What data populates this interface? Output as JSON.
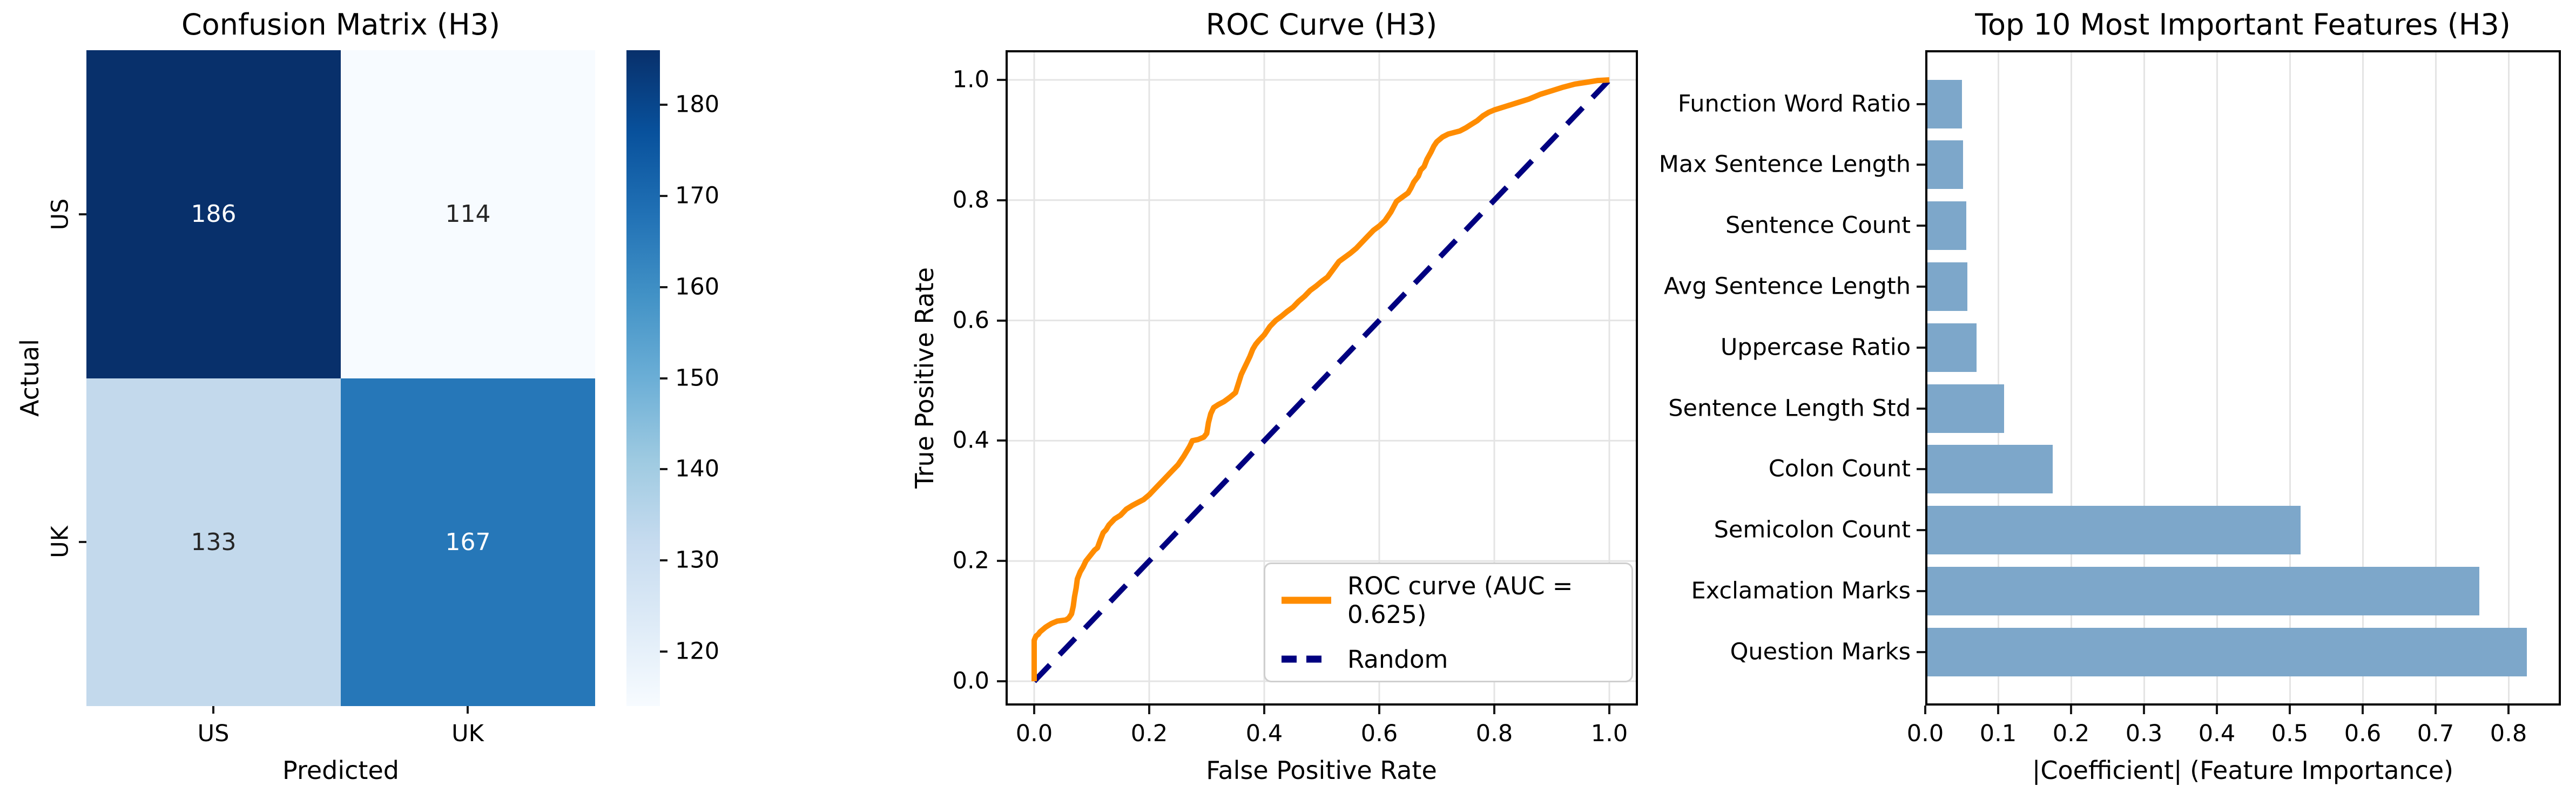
{
  "accent_colors": {
    "roc_orange": "#ff8c00",
    "random_navy": "#000080",
    "bar_blue": "#7da7ca",
    "grid_gray": "#e4e4e4",
    "annot_dark": "#262626",
    "annot_light": "#ffffff"
  },
  "chart_data": [
    {
      "type": "heatmap",
      "title": "Confusion Matrix (H3)",
      "xlabel": "Predicted",
      "ylabel": "Actual",
      "x_categories": [
        "US",
        "UK"
      ],
      "y_categories": [
        "US",
        "UK"
      ],
      "values": [
        [
          186,
          114
        ],
        [
          133,
          167
        ]
      ],
      "vmin": 114,
      "vmax": 186,
      "colormap": "Blues",
      "colorbar_ticks": [
        180,
        170,
        160,
        150,
        140,
        130,
        120
      ],
      "cell_colors": [
        [
          "#08306b",
          "#f7fbff"
        ],
        [
          "#c3d9ec",
          "#2677b8"
        ]
      ],
      "cell_text_colors": [
        [
          "#ffffff",
          "#262626"
        ],
        [
          "#262626",
          "#ffffff"
        ]
      ],
      "grid": false
    },
    {
      "type": "line",
      "title": "ROC Curve (H3)",
      "xlabel": "False Positive Rate",
      "ylabel": "True Positive Rate",
      "xlim": [
        0,
        1
      ],
      "ylim": [
        0,
        1
      ],
      "xticks": [
        0.0,
        0.2,
        0.4,
        0.6,
        0.8,
        1.0
      ],
      "yticks": [
        0.0,
        0.2,
        0.4,
        0.6,
        0.8,
        1.0
      ],
      "grid": true,
      "legend_position": "lower right",
      "series": [
        {
          "name": "ROC curve (AUC = 0.625)",
          "color": "#ff8c00",
          "style": "solid",
          "points": [
            [
              0,
              0
            ],
            [
              0,
              0.068
            ],
            [
              0.003,
              0.075
            ],
            [
              0.007,
              0.078
            ],
            [
              0.01,
              0.082
            ],
            [
              0.015,
              0.086
            ],
            [
              0.02,
              0.09
            ],
            [
              0.025,
              0.093
            ],
            [
              0.03,
              0.096
            ],
            [
              0.035,
              0.098
            ],
            [
              0.04,
              0.1
            ],
            [
              0.055,
              0.102
            ],
            [
              0.06,
              0.105
            ],
            [
              0.065,
              0.112
            ],
            [
              0.068,
              0.125
            ],
            [
              0.07,
              0.14
            ],
            [
              0.073,
              0.155
            ],
            [
              0.075,
              0.17
            ],
            [
              0.08,
              0.182
            ],
            [
              0.085,
              0.19
            ],
            [
              0.09,
              0.2
            ],
            [
              0.1,
              0.212
            ],
            [
              0.105,
              0.218
            ],
            [
              0.11,
              0.222
            ],
            [
              0.115,
              0.235
            ],
            [
              0.12,
              0.247
            ],
            [
              0.125,
              0.252
            ],
            [
              0.13,
              0.26
            ],
            [
              0.14,
              0.27
            ],
            [
              0.15,
              0.276
            ],
            [
              0.16,
              0.286
            ],
            [
              0.17,
              0.292
            ],
            [
              0.18,
              0.297
            ],
            [
              0.19,
              0.302
            ],
            [
              0.2,
              0.31
            ],
            [
              0.21,
              0.32
            ],
            [
              0.22,
              0.33
            ],
            [
              0.23,
              0.34
            ],
            [
              0.24,
              0.35
            ],
            [
              0.25,
              0.36
            ],
            [
              0.26,
              0.374
            ],
            [
              0.27,
              0.39
            ],
            [
              0.275,
              0.4
            ],
            [
              0.285,
              0.402
            ],
            [
              0.295,
              0.406
            ],
            [
              0.3,
              0.412
            ],
            [
              0.303,
              0.43
            ],
            [
              0.307,
              0.445
            ],
            [
              0.312,
              0.455
            ],
            [
              0.32,
              0.46
            ],
            [
              0.33,
              0.465
            ],
            [
              0.34,
              0.472
            ],
            [
              0.35,
              0.48
            ],
            [
              0.355,
              0.495
            ],
            [
              0.36,
              0.51
            ],
            [
              0.365,
              0.52
            ],
            [
              0.37,
              0.53
            ],
            [
              0.375,
              0.54
            ],
            [
              0.38,
              0.552
            ],
            [
              0.385,
              0.56
            ],
            [
              0.39,
              0.566
            ],
            [
              0.4,
              0.576
            ],
            [
              0.41,
              0.59
            ],
            [
              0.42,
              0.6
            ],
            [
              0.43,
              0.607
            ],
            [
              0.44,
              0.615
            ],
            [
              0.45,
              0.622
            ],
            [
              0.46,
              0.632
            ],
            [
              0.47,
              0.64
            ],
            [
              0.48,
              0.65
            ],
            [
              0.49,
              0.657
            ],
            [
              0.5,
              0.665
            ],
            [
              0.51,
              0.672
            ],
            [
              0.52,
              0.685
            ],
            [
              0.53,
              0.698
            ],
            [
              0.54,
              0.705
            ],
            [
              0.55,
              0.712
            ],
            [
              0.56,
              0.72
            ],
            [
              0.57,
              0.73
            ],
            [
              0.58,
              0.74
            ],
            [
              0.59,
              0.75
            ],
            [
              0.6,
              0.757
            ],
            [
              0.61,
              0.766
            ],
            [
              0.62,
              0.78
            ],
            [
              0.63,
              0.798
            ],
            [
              0.64,
              0.805
            ],
            [
              0.65,
              0.812
            ],
            [
              0.655,
              0.82
            ],
            [
              0.66,
              0.83
            ],
            [
              0.668,
              0.84
            ],
            [
              0.672,
              0.85
            ],
            [
              0.678,
              0.856
            ],
            [
              0.683,
              0.868
            ],
            [
              0.69,
              0.88
            ],
            [
              0.695,
              0.89
            ],
            [
              0.7,
              0.897
            ],
            [
              0.71,
              0.905
            ],
            [
              0.72,
              0.91
            ],
            [
              0.74,
              0.915
            ],
            [
              0.75,
              0.92
            ],
            [
              0.76,
              0.926
            ],
            [
              0.77,
              0.932
            ],
            [
              0.78,
              0.94
            ],
            [
              0.79,
              0.946
            ],
            [
              0.8,
              0.95
            ],
            [
              0.82,
              0.956
            ],
            [
              0.84,
              0.962
            ],
            [
              0.86,
              0.968
            ],
            [
              0.87,
              0.972
            ],
            [
              0.88,
              0.976
            ],
            [
              0.9,
              0.982
            ],
            [
              0.92,
              0.988
            ],
            [
              0.94,
              0.993
            ],
            [
              0.96,
              0.996
            ],
            [
              0.98,
              0.999
            ],
            [
              1,
              1
            ]
          ]
        },
        {
          "name": "Random",
          "color": "#000080",
          "style": "dashed",
          "points": [
            [
              0,
              0
            ],
            [
              1,
              1
            ]
          ]
        }
      ]
    },
    {
      "type": "bar",
      "orientation": "horizontal",
      "title": "Top 10 Most Important Features (H3)",
      "xlabel": "|Coefficient| (Feature Importance)",
      "ylabel": "",
      "order": "top-to-bottom",
      "categories": [
        "Function Word Ratio",
        "Max Sentence Length",
        "Sentence Count",
        "Avg Sentence Length",
        "Uppercase Ratio",
        "Sentence Length Std",
        "Colon Count",
        "Semicolon Count",
        "Exclamation Marks",
        "Question Marks"
      ],
      "values": [
        0.05,
        0.052,
        0.056,
        0.058,
        0.07,
        0.108,
        0.175,
        0.515,
        0.76,
        0.825
      ],
      "bar_color": "#7da7ca",
      "xticks": [
        0.0,
        0.1,
        0.2,
        0.3,
        0.4,
        0.5,
        0.6,
        0.7,
        0.8
      ],
      "xlim": [
        0,
        0.872
      ],
      "grid": true
    }
  ]
}
